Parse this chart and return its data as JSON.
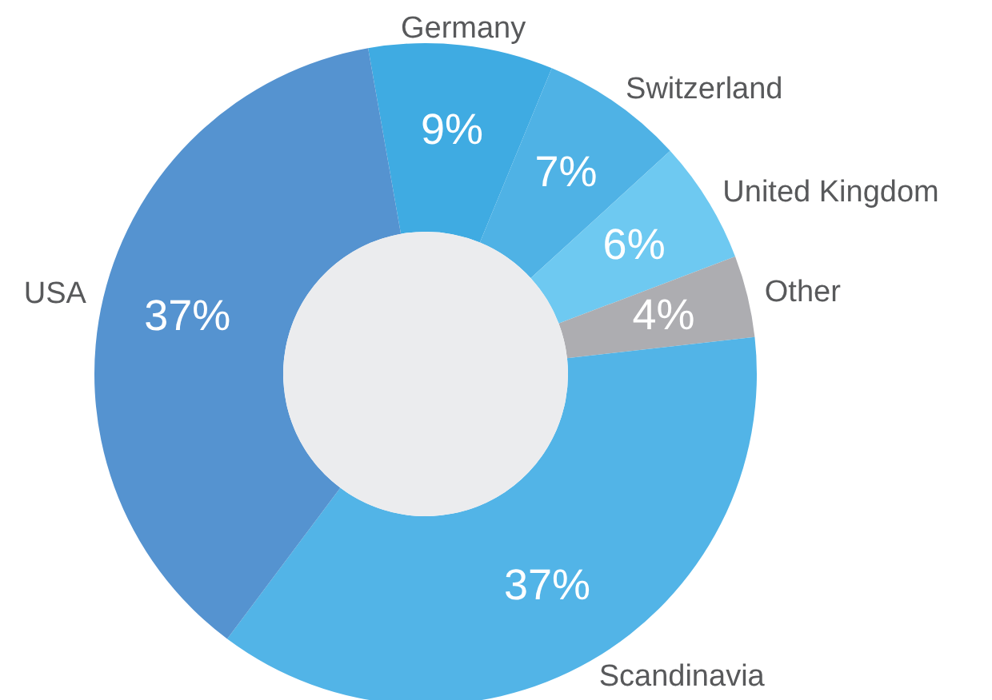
{
  "chart_data": {
    "type": "donut",
    "categories": [
      "Germany",
      "Switzerland",
      "United Kingdom",
      "Other",
      "Scandinavia",
      "USA"
    ],
    "values": [
      9,
      7,
      6,
      4,
      37,
      37
    ],
    "colors": [
      "#3fabe2",
      "#4fb2e5",
      "#6ec9f1",
      "#adadb1",
      "#52b4e7",
      "#5593d0"
    ],
    "value_labels": [
      "9%",
      "7%",
      "6%",
      "4%",
      "37%",
      "37%"
    ]
  }
}
